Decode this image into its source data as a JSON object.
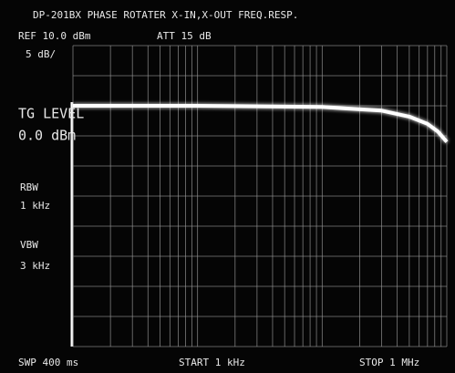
{
  "chart_data": {
    "type": "line",
    "title": "DP-201BX PHASE ROTATER X-IN,X-OUT FREQ.RESP.",
    "annotations": [
      "REF 10.0 dBm",
      "ATT 15 dB",
      "5 dB/",
      "TG LEVEL",
      "0.0 dBm",
      "RBW",
      "1 kHz",
      "VBW",
      "3 kHz",
      "SWP 400 ms",
      "START 1 kHz",
      "STOP 1 MHz"
    ],
    "x": [
      1000,
      10000,
      100000,
      300000,
      500000,
      700000,
      850000,
      1000000
    ],
    "values": [
      0,
      0,
      -0.2,
      -0.8,
      -1.8,
      -3,
      -4.3,
      -6
    ],
    "color": "#ffffff",
    "xscale": "log",
    "xlim": [
      1000,
      1000000
    ],
    "xticks": [
      1000,
      2000,
      3000,
      4000,
      5000,
      6000,
      7000,
      8000,
      9000,
      10000,
      20000,
      30000,
      40000,
      50000,
      60000,
      70000,
      80000,
      90000,
      100000,
      200000,
      300000,
      400000,
      500000,
      600000,
      700000,
      800000,
      900000,
      1000000
    ],
    "ylim": [
      -40,
      10
    ],
    "yticks": [
      -40,
      -35,
      -30,
      -25,
      -20,
      -15,
      -10,
      -5,
      0,
      5,
      10
    ],
    "grid": true
  }
}
